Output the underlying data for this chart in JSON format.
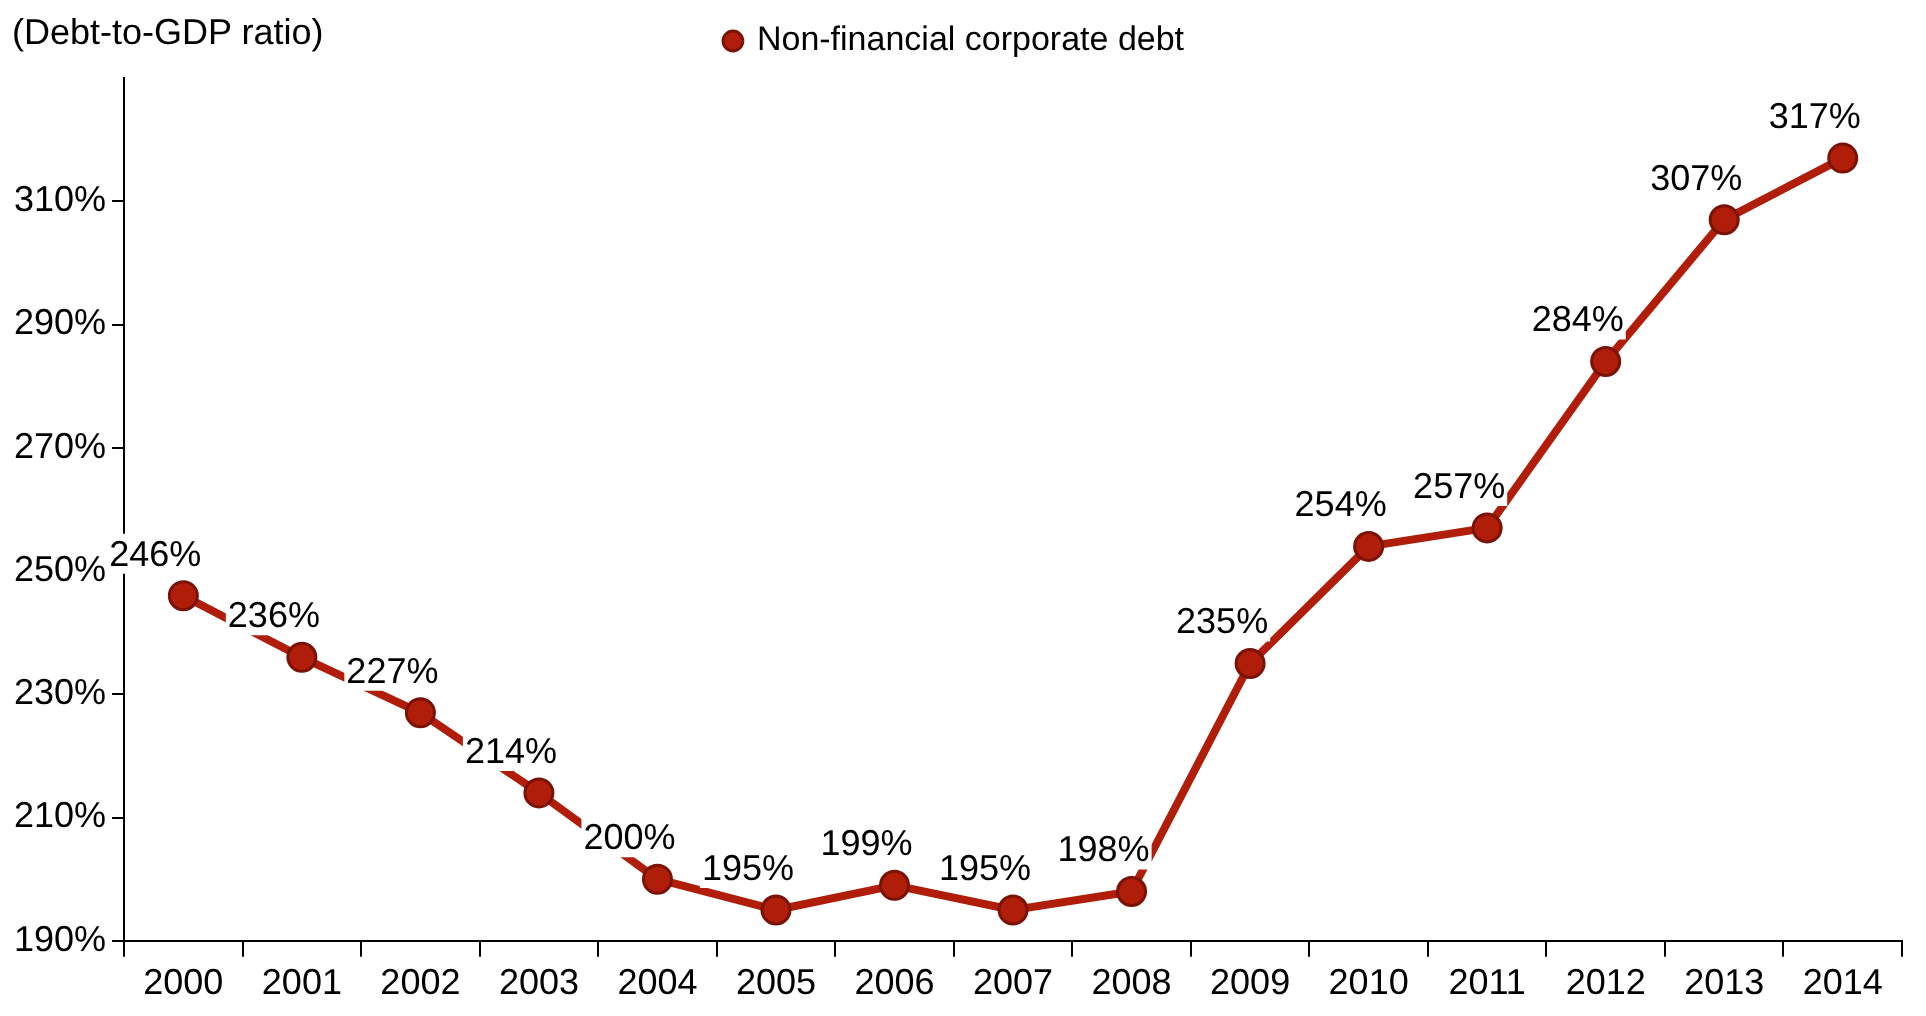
{
  "chart_data": {
    "type": "line",
    "ylabel": "(Debt-to-GDP ratio)",
    "categories": [
      "2000",
      "2001",
      "2002",
      "2003",
      "2004",
      "2005",
      "2006",
      "2007",
      "2008",
      "2009",
      "2010",
      "2011",
      "2012",
      "2013",
      "2014"
    ],
    "series": [
      {
        "name": "Non-financial corporate debt",
        "color": "#b01e0a",
        "values": [
          246,
          236,
          227,
          214,
          200,
          195,
          199,
          195,
          198,
          235,
          254,
          257,
          284,
          307,
          317
        ],
        "value_labels": [
          "246%",
          "236%",
          "227%",
          "214%",
          "200%",
          "195%",
          "199%",
          "195%",
          "198%",
          "235%",
          "254%",
          "257%",
          "284%",
          "307%",
          "317%"
        ]
      }
    ],
    "ylim": [
      190,
      330
    ],
    "yticks": [
      {
        "value": 190,
        "label": "190%"
      },
      {
        "value": 210,
        "label": "210%"
      },
      {
        "value": 230,
        "label": "230%"
      },
      {
        "value": 250,
        "label": "250%"
      },
      {
        "value": 270,
        "label": "270%"
      },
      {
        "value": 290,
        "label": "290%"
      },
      {
        "value": 310,
        "label": "310%"
      }
    ],
    "grid": false,
    "legend": "top",
    "marker": "circle",
    "line_style": "solid"
  }
}
